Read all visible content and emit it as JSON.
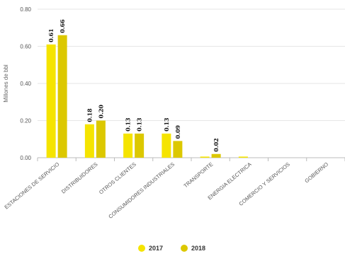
{
  "chart_data": {
    "type": "bar",
    "ylabel": "Millones de bbl",
    "ylim": [
      0,
      0.8
    ],
    "yticks": [
      "0.00",
      "0.20",
      "0.40",
      "0.60",
      "0.80"
    ],
    "categories": [
      "ESTACIONES DE SERVICIO",
      "DISTRIBUIDORES",
      "OTROS CLIENTES",
      "CONSUMIDORES INDUSTRIALES",
      "TRANSPORTE",
      "ENERGIA ELECTRICA",
      "COMERCIO Y SERVICIOS",
      "GOBIERNO"
    ],
    "series": [
      {
        "name": "2017",
        "color": "#f5e400",
        "values": [
          0.61,
          0.18,
          0.13,
          0.13,
          0.006,
          0.006,
          0,
          0
        ],
        "labels": [
          "0.61",
          "0.18",
          "0.13",
          "0.13",
          "",
          "",
          "",
          ""
        ]
      },
      {
        "name": "2018",
        "color": "#dcc800",
        "values": [
          0.66,
          0.2,
          0.13,
          0.09,
          0.02,
          0,
          0,
          0
        ],
        "labels": [
          "0.66",
          "0.20",
          "0.13",
          "0.09",
          "0.02",
          "",
          "",
          ""
        ]
      }
    ],
    "grid": true,
    "legend_position": "bottom-center"
  }
}
